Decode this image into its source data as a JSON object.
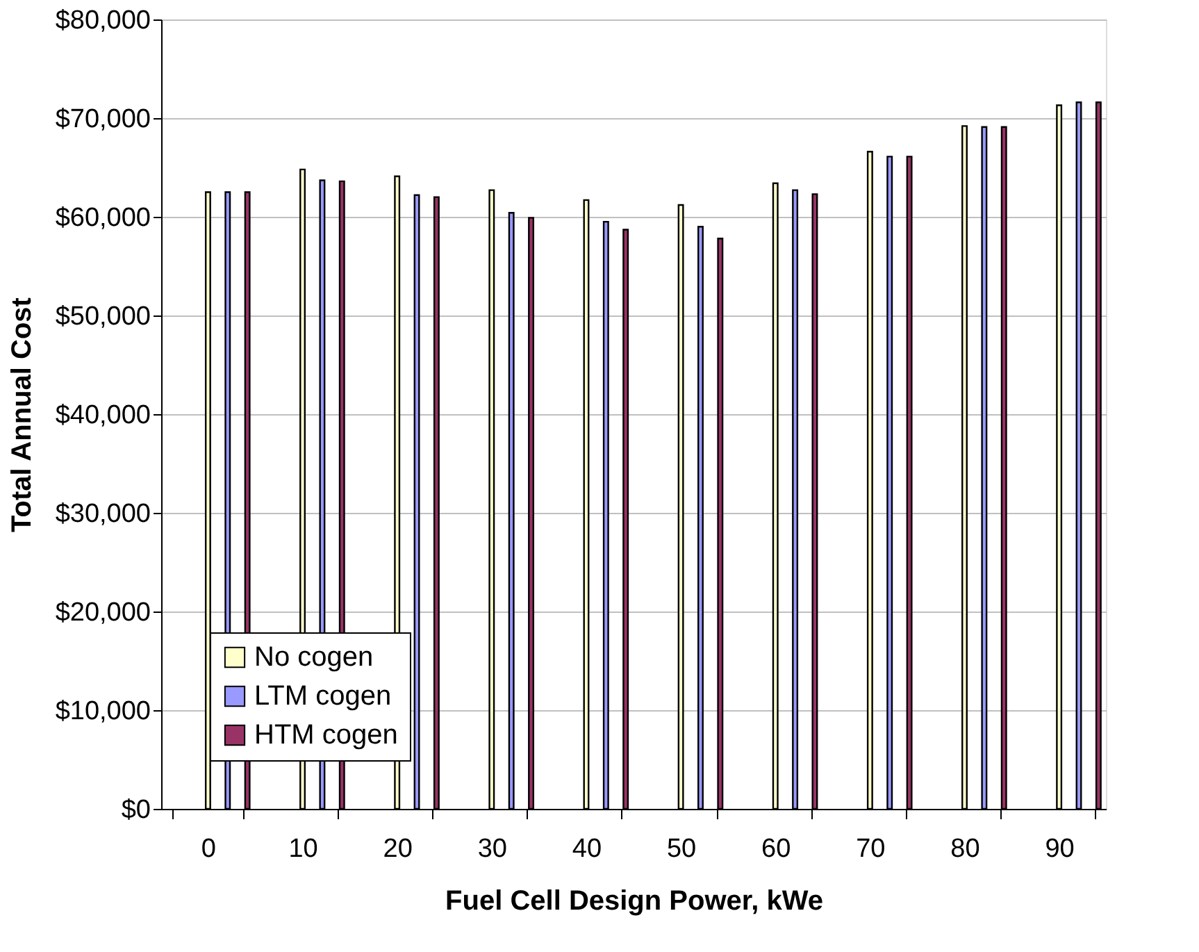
{
  "chart_data": {
    "type": "bar",
    "xlabel": "Fuel Cell Design Power, kWe",
    "ylabel": "Total Annual Cost",
    "categories": [
      "0",
      "10",
      "20",
      "30",
      "40",
      "50",
      "60",
      "70",
      "80",
      "90"
    ],
    "series": [
      {
        "name": "No cogen",
        "color": "#ffffcc",
        "values": [
          62500,
          64800,
          64100,
          62700,
          61700,
          61200,
          63400,
          66600,
          69200,
          71300
        ]
      },
      {
        "name": "LTM cogen",
        "color": "#9999ff",
        "values": [
          62500,
          63700,
          62200,
          60400,
          59500,
          59000,
          62700,
          66100,
          69100,
          71600
        ]
      },
      {
        "name": "HTM cogen",
        "color": "#993366",
        "values": [
          62500,
          63600,
          62000,
          59900,
          58700,
          57800,
          62300,
          66100,
          69100,
          71600
        ]
      }
    ],
    "ylim": [
      0,
      80000
    ],
    "yticks": [
      {
        "value": 0,
        "label": "$0"
      },
      {
        "value": 10000,
        "label": "$10,000"
      },
      {
        "value": 20000,
        "label": "$20,000"
      },
      {
        "value": 30000,
        "label": "$30,000"
      },
      {
        "value": 40000,
        "label": "$40,000"
      },
      {
        "value": 50000,
        "label": "$50,000"
      },
      {
        "value": 60000,
        "label": "$60,000"
      },
      {
        "value": 70000,
        "label": "$70,000"
      },
      {
        "value": 80000,
        "label": "$80,000"
      }
    ],
    "grid": "y",
    "legend": "bottom left"
  }
}
